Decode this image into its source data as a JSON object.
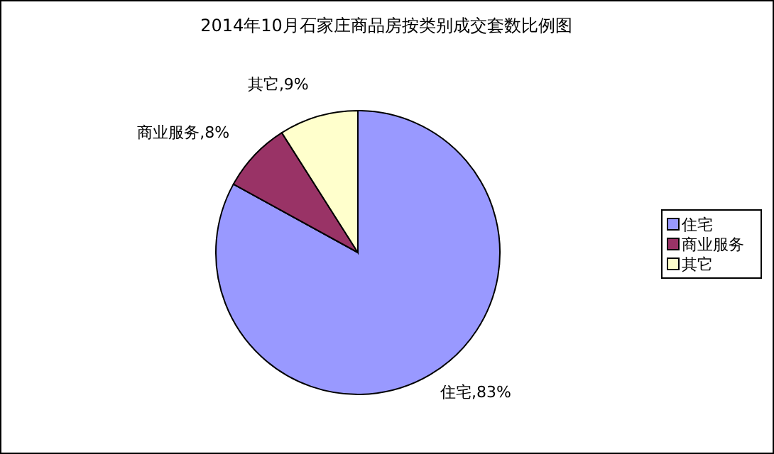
{
  "chart_data": {
    "type": "pie",
    "title": "2014年10月石家庄商品房按类别成交套数比例图",
    "categories": [
      "住宅",
      "商业服务",
      "其它"
    ],
    "values": [
      83,
      8,
      9
    ],
    "value_labels": [
      "住宅,83%",
      "商业服务,8%",
      "其它,9%"
    ],
    "colors": [
      "#9999ff",
      "#993366",
      "#ffffcc"
    ],
    "legend": "right"
  }
}
